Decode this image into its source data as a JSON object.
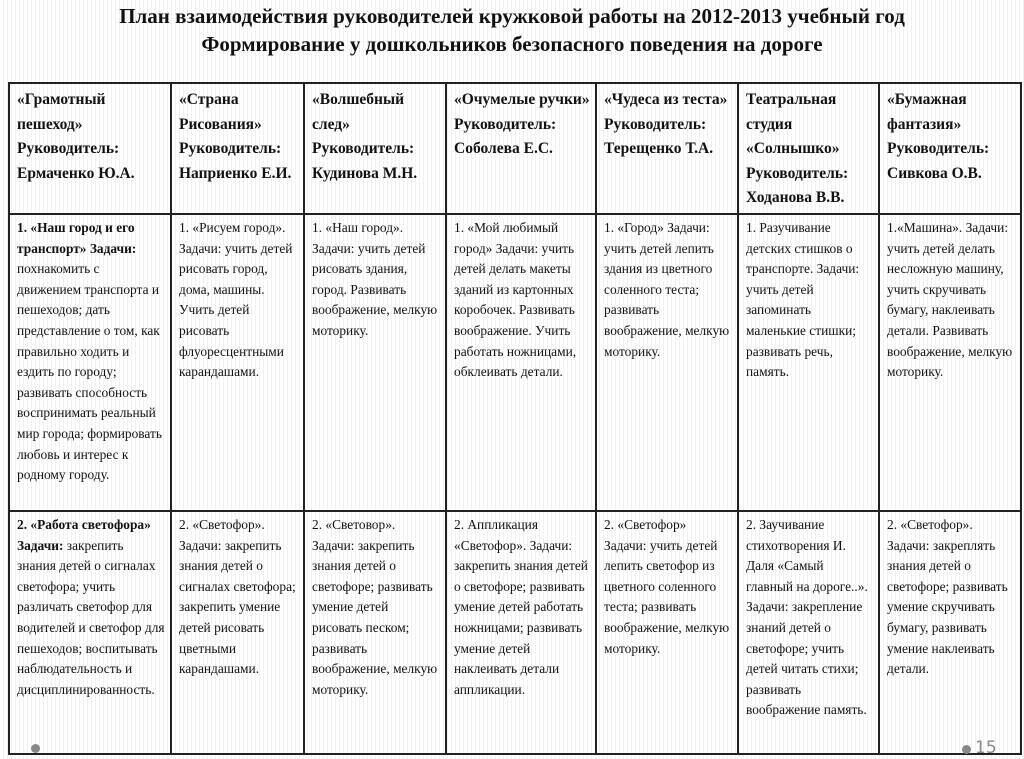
{
  "title": "План взаимодействия руководителей кружковой работы на 2012-2013 учебный год",
  "subtitle": "Формирование у дошкольников безопасного поведения на дороге",
  "table": {
    "headers": [
      "«Грамотный пешеход» Руководитель: Ермаченко Ю.А.",
      "«Страна Рисования» Руководитель: Наприенко Е.И.",
      "«Волшебный след» Руководитель: Кудинова М.Н.",
      "«Очумелые ручки» Руководитель: Соболева Е.С.",
      "«Чудеса из теста» Руководитель: Терещенко Т.А.",
      "Театральная студия «Солнышко» Руководитель: Ходанова В.В.",
      "«Бумажная фантазия» Руководитель: Сивкова О.В."
    ],
    "rows": [
      {
        "first_bold": "1. «Наш город и его транспорт» Задачи:",
        "first_rest": " похнакомить с движением транспорта и пешеходов; дать представление о том, как правильно ходить и ездить по городу; развивать способность воспринимать реальный мир города; формировать любовь и интерес к родному городу.",
        "cells": [
          "1. «Рисуем город». Задачи: учить детей рисовать город, дома, машины. Учить детей рисовать флуоресцентными карандашами.",
          "1. «Наш город». Задачи: учить детей рисовать здания, город. Развивать воображение, мелкую моторику.",
          "1. «Мой любимый город» Задачи: учить детей делать макеты зданий из картонных коробочек. Развивать воображение. Учить работать ножницами, обклеивать детали.",
          "1. «Город» Задачи: учить детей лепить здания из цветного соленного теста; развивать воображение, мелкую моторику.",
          "1. Разучивание детских стишков о транспорте. Задачи: учить детей запоминать маленькие стишки; развивать речь, память.",
          "1.«Машина». Задачи: учить детей делать несложную машину, учить скручивать бумагу, наклеивать детали. Развивать воображение, мелкую моторику."
        ]
      },
      {
        "first_bold": "2. «Работа светофора» Задачи:",
        "first_rest": " закрепить знания детей о сигналах светофора; учить различать светофор для водителей и светофор для пешеходов; воспитывать наблюдательность и дисциплинированность.",
        "cells": [
          "2. «Светофор». Задачи: закрепить знания детей о сигналах светофора; закрепить умение детей рисовать цветными карандашами.",
          "2. «Световор». Задачи: закрепить знания детей о светофоре; развивать умение детей рисовать песком; развивать воображение, мелкую моторику.",
          "2. Аппликация «Светофор». Задачи: закрепить знания детей о светофоре; развивать умение детей работать ножницами; развивать умение детей наклеивать детали аппликации.",
          "2. «Светофор» Задачи: учить детей лепить светофор из цветного соленного теста; развивать воображение, мелкую моторику.",
          "2. Заучивание стихотворения И. Даля «Самый главный на дороге..». Задачи: закрепление знаний детей о светофоре; учить детей читать стихи; развивать воображение память.",
          "2. «Светофор». Задачи: закреплять знания детей о светофоре; развивать умение скручивать бумагу, развивать умение наклеивать детали."
        ]
      }
    ]
  },
  "footer": {
    "page_number": "15",
    "bullet_color": "#888888"
  }
}
